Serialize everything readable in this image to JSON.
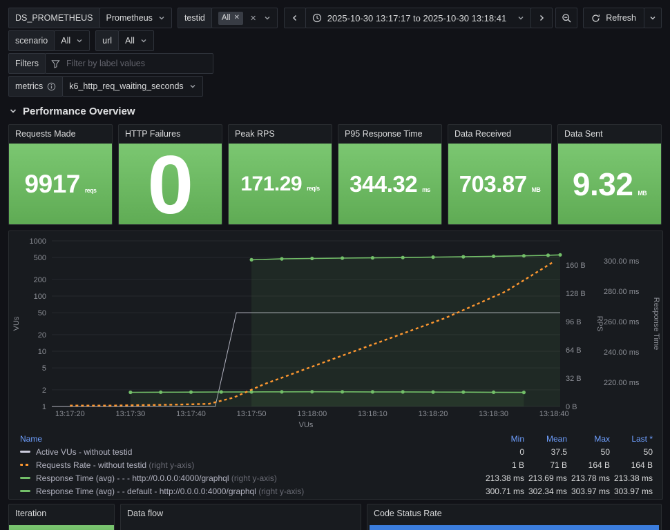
{
  "colors": {
    "bg": "#111217",
    "panel": "#181b1f",
    "green": "#73bf69",
    "orange": "#ff9830",
    "grey_series": "#ccccdc",
    "link_blue": "#6e9fff",
    "status_blue": "#3b7ddd"
  },
  "icons": {
    "chevron_down": "v-chevron",
    "chevron_left": "‹",
    "chevron_right": "›",
    "close": "✕",
    "clock": "clock-face",
    "zoom_out": "magnifier-minus",
    "refresh": "circular-arrow",
    "funnel": "filter-funnel",
    "info": "i-circle"
  },
  "variables": {
    "ds_label": "DS_PROMETHEUS",
    "ds_value": "Prometheus",
    "testid_label": "testid",
    "testid_tag": "All",
    "scenario_label": "scenario",
    "scenario_value": "All",
    "url_label": "url",
    "url_value": "All",
    "filters_label": "Filters",
    "filters_placeholder": "Filter by label values",
    "metrics_label": "metrics",
    "metrics_value": "k6_http_req_waiting_seconds"
  },
  "timebar": {
    "range": "2025-10-30 13:17:17 to 2025-10-30 13:18:41",
    "refresh_label": "Refresh"
  },
  "section": {
    "title": "Performance Overview"
  },
  "stats": [
    {
      "title": "Requests Made",
      "value": "9917",
      "unit": "reqs",
      "size": "m"
    },
    {
      "title": "HTTP Failures",
      "value": "0",
      "unit": "",
      "size": "xl"
    },
    {
      "title": "Peak RPS",
      "value": "171.29",
      "unit": "req/s",
      "size": "xs"
    },
    {
      "title": "P95 Response Time",
      "value": "344.32",
      "unit": "ms",
      "size": "s"
    },
    {
      "title": "Data Received",
      "value": "703.87",
      "unit": "MB",
      "size": "s"
    },
    {
      "title": "Data Sent",
      "value": "9.32",
      "unit": "MB",
      "size": "l"
    }
  ],
  "timeseries": {
    "chart_data": {
      "type": "line",
      "xlabel": "VUs",
      "x_start": "13:17:17",
      "x_end": "13:18:41",
      "x_max": 84,
      "x_ticks": [
        {
          "t": 3,
          "label": "13:17:20"
        },
        {
          "t": 13,
          "label": "13:17:30"
        },
        {
          "t": 23,
          "label": "13:17:40"
        },
        {
          "t": 33,
          "label": "13:17:50"
        },
        {
          "t": 43,
          "label": "13:18:00"
        },
        {
          "t": 53,
          "label": "13:18:10"
        },
        {
          "t": 63,
          "label": "13:18:20"
        },
        {
          "t": 73,
          "label": "13:18:30"
        },
        {
          "t": 83,
          "label": "13:18:40"
        }
      ],
      "axes": {
        "left": {
          "label": "VUs",
          "scale": "log",
          "ticks": [
            1,
            2,
            5,
            10,
            20,
            50,
            100,
            200,
            500,
            1000
          ]
        },
        "rps": {
          "label": "RPS",
          "min": 0,
          "max": 160,
          "ticks": [
            {
              "v": 0,
              "label": "0 B"
            },
            {
              "v": 32,
              "label": "32 B"
            },
            {
              "v": 64,
              "label": "64 B"
            },
            {
              "v": 96,
              "label": "96 B"
            },
            {
              "v": 128,
              "label": "128 B"
            },
            {
              "v": 160,
              "label": "160 B"
            }
          ]
        },
        "rt": {
          "label": "Response Time",
          "min": 220,
          "max": 300,
          "ticks": [
            {
              "v": 220,
              "label": "220.00 ms"
            },
            {
              "v": 240,
              "label": "240.00 ms"
            },
            {
              "v": 260,
              "label": "260.00 ms"
            },
            {
              "v": 280,
              "label": "280.00 ms"
            },
            {
              "v": 300,
              "label": "300.00 ms"
            }
          ]
        }
      },
      "series": [
        {
          "name": "Active VUs - without testid",
          "color": "#ccccdc",
          "axis": "left",
          "width": 1,
          "dash": null,
          "dots": false,
          "fill": false,
          "opacity": 0.85,
          "points": [
            [
              0,
              0
            ],
            [
              27,
              0
            ],
            [
              30.5,
              50
            ],
            [
              84,
              50
            ]
          ]
        },
        {
          "name": "Response Time (avg) - - - http://0.0.0.0:4000/graphql",
          "color": "#73bf69",
          "axis": "rt",
          "width": 1.6,
          "dash": null,
          "dots": true,
          "fill": true,
          "points": [
            [
              13,
              213.42
            ],
            [
              18,
              213.5
            ],
            [
              23,
              213.56
            ],
            [
              28,
              213.62
            ],
            [
              33,
              213.69
            ],
            [
              38,
              213.74
            ],
            [
              43,
              213.78
            ],
            [
              48,
              213.75
            ],
            [
              53,
              213.7
            ],
            [
              58,
              213.66
            ],
            [
              63,
              213.6
            ],
            [
              68,
              213.55
            ],
            [
              73,
              213.45
            ],
            [
              78,
              213.38
            ]
          ]
        },
        {
          "name": "Response Time (avg) - - default - http://0.0.0.0:4000/graphql",
          "color": "#73bf69",
          "axis": "rt",
          "width": 1.6,
          "dash": null,
          "dots": true,
          "fill": true,
          "points": [
            [
              33,
              300.71
            ],
            [
              38,
              301.3
            ],
            [
              43,
              301.6
            ],
            [
              48,
              301.8
            ],
            [
              53,
              302.0
            ],
            [
              58,
              302.2
            ],
            [
              63,
              302.45
            ],
            [
              68,
              302.7
            ],
            [
              73,
              303.0
            ],
            [
              78,
              303.3
            ],
            [
              82,
              303.7
            ],
            [
              84,
              303.97
            ]
          ]
        },
        {
          "name": "Requests Rate - without testid",
          "color": "#ff9830",
          "axis": "rps",
          "width": 2.4,
          "dash": "4 4",
          "dots": false,
          "fill": false,
          "points": [
            [
              3,
              1
            ],
            [
              10,
              1
            ],
            [
              20,
              2
            ],
            [
              26,
              3
            ],
            [
              30,
              10
            ],
            [
              35,
              25
            ],
            [
              45,
              50
            ],
            [
              55,
              75
            ],
            [
              65,
              100
            ],
            [
              75,
              130
            ],
            [
              83,
              164
            ]
          ]
        }
      ]
    },
    "legend": {
      "columns": [
        "Name",
        "Min",
        "Mean",
        "Max",
        "Last *"
      ],
      "rows": [
        {
          "name": "Active VUs - without testid",
          "suffix": "",
          "color": "#ccccdc",
          "dashed": false,
          "min": "0",
          "mean": "37.5",
          "max": "50",
          "last": "50"
        },
        {
          "name": "Requests Rate - without testid",
          "suffix": "(right y-axis)",
          "color": "#ff9830",
          "dashed": true,
          "min": "1 B",
          "mean": "71 B",
          "max": "164 B",
          "last": "164 B"
        },
        {
          "name": "Response Time (avg) - - - http://0.0.0.0:4000/graphql",
          "suffix": "(right y-axis)",
          "color": "#73bf69",
          "dashed": false,
          "min": "213.38 ms",
          "mean": "213.69 ms",
          "max": "213.78 ms",
          "last": "213.38 ms"
        },
        {
          "name": "Response Time (avg) - - default - http://0.0.0.0:4000/graphql",
          "suffix": "(right y-axis)",
          "color": "#73bf69",
          "dashed": false,
          "min": "300.71 ms",
          "mean": "302.34 ms",
          "max": "303.97 ms",
          "last": "303.97 ms"
        }
      ]
    }
  },
  "bottom_panels": [
    {
      "title": "Iteration",
      "body": "green-stat"
    },
    {
      "title": "Data flow",
      "body": "none"
    },
    {
      "title": "Code Status Rate",
      "body": "blue-bar"
    }
  ]
}
